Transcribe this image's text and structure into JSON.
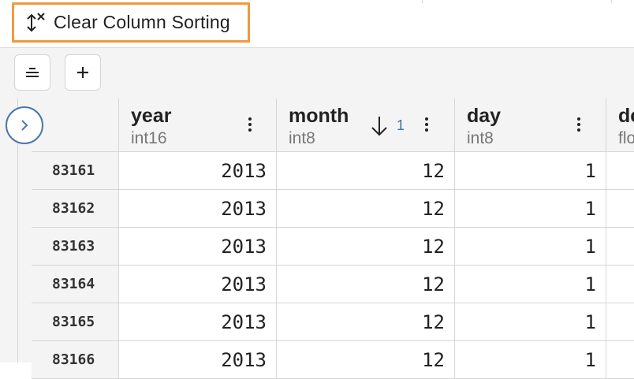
{
  "toolbar_top": {
    "clear_sorting_label": "Clear Column Sorting",
    "clear_sorting_icon": "sort-clear-icon"
  },
  "toolbar": {
    "buttons": [
      {
        "icon": "align-center-lines-icon"
      },
      {
        "icon": "plus-icon"
      }
    ]
  },
  "grid": {
    "expand_icon": "chevron-right-icon",
    "columns": [
      {
        "name": "year",
        "type": "int16"
      },
      {
        "name": "month",
        "type": "int8",
        "sort_direction": "descending",
        "sort_rank": "1"
      },
      {
        "name": "day",
        "type": "int8"
      },
      {
        "name": "de",
        "type": "flo"
      }
    ],
    "rows": [
      {
        "index": "83161",
        "year": "2013",
        "month": "12",
        "day": "1"
      },
      {
        "index": "83162",
        "year": "2013",
        "month": "12",
        "day": "1"
      },
      {
        "index": "83163",
        "year": "2013",
        "month": "12",
        "day": "1"
      },
      {
        "index": "83164",
        "year": "2013",
        "month": "12",
        "day": "1"
      },
      {
        "index": "83165",
        "year": "2013",
        "month": "12",
        "day": "1"
      },
      {
        "index": "83166",
        "year": "2013",
        "month": "12",
        "day": "1"
      }
    ]
  },
  "colors": {
    "highlight_border": "#ef9a3d",
    "accent_blue": "#4a77ab"
  }
}
